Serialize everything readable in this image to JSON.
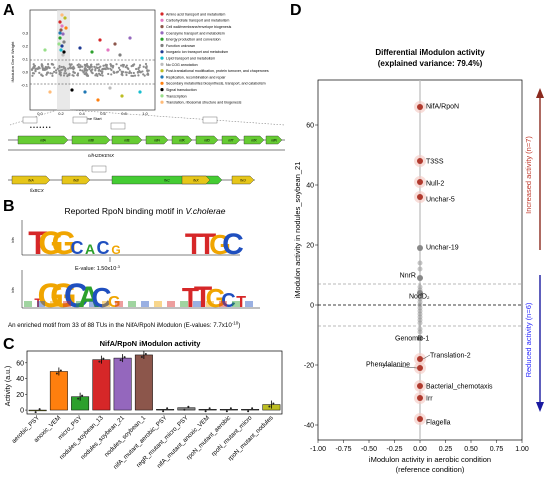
{
  "panels": {
    "a": "A",
    "b": "B",
    "c": "C",
    "d": "D"
  },
  "panel_a": {
    "y_axis_label": "iModulon Gene Weight",
    "x_axis_label": "Gene Start",
    "x_ticks": [
      "0.0",
      "0.2",
      "0.4",
      "0.6",
      "0.8",
      "1.0"
    ],
    "y_ticks": [
      "0.3",
      "0.2",
      "0.1",
      "0.0",
      "-0.1"
    ],
    "x_ticks_values": [
      0.0,
      0.2,
      0.4,
      0.6,
      0.8,
      1.0
    ],
    "y_ticks_values": [
      0.3,
      0.2,
      0.1,
      0.0,
      -0.1
    ],
    "legend": [
      {
        "label": "Amino acid transport and metabolism",
        "color": "#d62728"
      },
      {
        "label": "Carbohydrate transport and metabolism",
        "color": "#e377c2"
      },
      {
        "label": "Cell wall/membrane/envelope biogenesis",
        "color": "#8c564b"
      },
      {
        "label": "Coenzyme transport and metabolism",
        "color": "#9467bd"
      },
      {
        "label": "Energy production and conversion",
        "color": "#2ca02c"
      },
      {
        "label": "Function unknown",
        "color": "#7f7f7f"
      },
      {
        "label": "Inorganic ion transport and metabolism",
        "color": "#1f3a93"
      },
      {
        "label": "Lipid transport and metabolism",
        "color": "#17becf"
      },
      {
        "label": "No COG annotation",
        "color": "#bcbcbc"
      },
      {
        "label": "Post-translational modification, protein turnover, and chaperones",
        "color": "#bcbd22"
      },
      {
        "label": "Replication, recombination and repair",
        "color": "#1f77b4"
      },
      {
        "label": "Secondary metabolites biosynthesis, transport, and catabolism",
        "color": "#ff7f0e"
      },
      {
        "label": "Signal transduction",
        "color": "#000000"
      },
      {
        "label": "Transcription",
        "color": "#98df8a"
      },
      {
        "label": "Translation, ribosomal structure and biogenesis",
        "color": "#ffbb78"
      }
    ],
    "operon1_genes": [
      "nifA",
      "nifB",
      "nifE",
      "nifH",
      "nifK",
      "nifD",
      "nifT",
      "nifX",
      "nifN"
    ],
    "operon1_label": "nifH2DKENX",
    "operon2_genes": [
      "fixA",
      "fixB",
      "fixC",
      "fixX",
      "fixU"
    ],
    "operon2_label": "fixBCX"
  },
  "panel_b": {
    "title_prefix": "Reported RpoN binding motif in ",
    "title_species": "V.cholerae",
    "bits_label": "bits",
    "evalue_label": "E-value: 1.50x10",
    "evalue_exp": "-3",
    "caption_prefix": "An enriched motif  from 33 of 88 TUs in the NifA/RpoN iModulon (E-values: 7.7x10",
    "caption_exp": "-10",
    "caption_suffix": ")",
    "motif1": [
      "T",
      "G",
      "G",
      "C",
      "A",
      "C",
      "G",
      "",
      "",
      "",
      "",
      "",
      "T",
      "T",
      "G",
      "C"
    ],
    "motif2": [
      "T",
      "G",
      "G",
      "C",
      "A",
      "C",
      "G",
      "",
      "",
      "",
      "",
      "",
      "T",
      "T",
      "G",
      "C",
      "T"
    ]
  },
  "chart_data": [
    {
      "type": "bar",
      "title": "NifA/RpoN iModulon activity",
      "ylabel": "Activity (a.u.)",
      "ylim": [
        -5,
        75
      ],
      "yticks": [
        "0",
        "20",
        "40",
        "60"
      ],
      "categories": [
        "aerobic_PSY",
        "anoxic_VEM",
        "micro_PSY",
        "nodules_soybean_13",
        "nodules_soybean_21",
        "nodules_soybean_1",
        "nifA_mutant_aerobic_PSY",
        "regR_mutant_micro_PSY",
        "nifA_mutant_anoxic_VEM",
        "rpoN_mutant_aerobic",
        "rpoN_mutant_micro",
        "rpoN_mutant_nodules"
      ],
      "values": [
        0,
        49,
        17,
        64,
        66,
        70,
        1,
        3,
        1,
        1,
        1,
        7
      ],
      "colors": [
        "#bcbd22",
        "#ff7f0e",
        "#2ca02c",
        "#d62728",
        "#9467bd",
        "#8c564b",
        "#7f7f7f",
        "#7f7f7f",
        "#7f7f7f",
        "#7f7f7f",
        "#7f7f7f",
        "#bcbd22"
      ]
    },
    {
      "type": "scatter",
      "title": "Differential iModulon activity",
      "subtitle": "(explained variance: 79.4%)",
      "xlabel": "iModulon activity in aerobic condition",
      "xlabel2": "(reference condition)",
      "ylabel": "iModulon activity in nodules_soybean_21",
      "xlim": [
        -1.0,
        1.0
      ],
      "ylim": [
        -45,
        75
      ],
      "xticks": [
        "-1.00",
        "-0.75",
        "-0.50",
        "-0.25",
        "0.00",
        "0.25",
        "0.50",
        "0.75",
        "1.00"
      ],
      "yticks": [
        "60",
        "40",
        "20",
        "0",
        "-20",
        "-40"
      ],
      "xticks_values": [
        -1.0,
        -0.75,
        -0.5,
        -0.25,
        0.0,
        0.25,
        0.5,
        0.75,
        1.0
      ],
      "yticks_values": [
        60,
        40,
        20,
        0,
        -20,
        -40
      ],
      "threshold_upper": 7,
      "threshold_lower": -7,
      "points": [
        {
          "label": "NifA/RpoN",
          "x": 0,
          "y": 66,
          "color": "#b03a2e"
        },
        {
          "label": "T3SS",
          "x": 0,
          "y": 48,
          "color": "#b03a2e"
        },
        {
          "label": "Null-2",
          "x": 0,
          "y": 41,
          "color": "#b03a2e"
        },
        {
          "label": "Unchar-5",
          "x": 0,
          "y": 36,
          "color": "#b03a2e"
        },
        {
          "label": "Unchar-19",
          "x": 0,
          "y": 19,
          "color": "#888888"
        },
        {
          "label": "NnrR",
          "x": 0,
          "y": 9,
          "color": "#888888"
        },
        {
          "label": "NodD₂",
          "x": 0,
          "y": 4,
          "color": "#888888"
        },
        {
          "label": "Genomic-1",
          "x": 0,
          "y": -11,
          "color": "#888888"
        },
        {
          "label": "Translation-2",
          "x": 0,
          "y": -18,
          "color": "#b03a2e"
        },
        {
          "label": "Phenylalanine",
          "x": 0,
          "y": -21,
          "color": "#b03a2e"
        },
        {
          "label": "Bacterial_chemotaxis",
          "x": 0,
          "y": -27,
          "color": "#b03a2e"
        },
        {
          "label": "Irr",
          "x": 0,
          "y": -31,
          "color": "#b03a2e"
        },
        {
          "label": "Flagella",
          "x": 0,
          "y": -38,
          "color": "#b03a2e"
        }
      ],
      "increased_label": "Increased activity (n=7)",
      "reduced_label": "Reduced activity (n=6)"
    }
  ]
}
